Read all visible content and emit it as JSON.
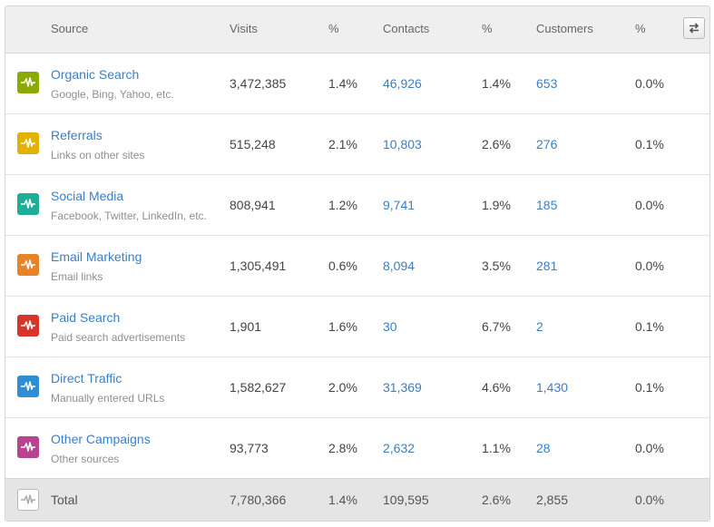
{
  "header": {
    "source": "Source",
    "visits": "Visits",
    "visits_pct": "%",
    "contacts": "Contacts",
    "contacts_pct": "%",
    "customers": "Customers",
    "customers_pct": "%",
    "swap_icon": "swap-arrows-icon"
  },
  "rows": [
    {
      "name": "Organic Search",
      "sub": "Google, Bing, Yahoo, etc.",
      "visits": "3,472,385",
      "visits_pct": "1.4%",
      "contacts": "46,926",
      "contacts_pct": "1.4%",
      "customers": "653",
      "customers_pct": "0.0%",
      "color": "#8aaa00"
    },
    {
      "name": "Referrals",
      "sub": "Links on other sites",
      "visits": "515,248",
      "visits_pct": "2.1%",
      "contacts": "10,803",
      "contacts_pct": "2.6%",
      "customers": "276",
      "customers_pct": "0.1%",
      "color": "#e3b100"
    },
    {
      "name": "Social Media",
      "sub": "Facebook, Twitter, LinkedIn, etc.",
      "visits": "808,941",
      "visits_pct": "1.2%",
      "contacts": "9,741",
      "contacts_pct": "1.9%",
      "customers": "185",
      "customers_pct": "0.0%",
      "color": "#1eae97"
    },
    {
      "name": "Email Marketing",
      "sub": "Email links",
      "visits": "1,305,491",
      "visits_pct": "0.6%",
      "contacts": "8,094",
      "contacts_pct": "3.5%",
      "customers": "281",
      "customers_pct": "0.0%",
      "color": "#e8832a"
    },
    {
      "name": "Paid Search",
      "sub": "Paid search advertisements",
      "visits": "1,901",
      "visits_pct": "1.6%",
      "contacts": "30",
      "contacts_pct": "6.7%",
      "customers": "2",
      "customers_pct": "0.1%",
      "color": "#d8352a"
    },
    {
      "name": "Direct Traffic",
      "sub": "Manually entered URLs",
      "visits": "1,582,627",
      "visits_pct": "2.0%",
      "contacts": "31,369",
      "contacts_pct": "4.6%",
      "customers": "1,430",
      "customers_pct": "0.1%",
      "color": "#2e8dd4"
    },
    {
      "name": "Other Campaigns",
      "sub": "Other sources",
      "visits": "93,773",
      "visits_pct": "2.8%",
      "contacts": "2,632",
      "contacts_pct": "1.1%",
      "customers": "28",
      "customers_pct": "0.0%",
      "color": "#b8438f"
    }
  ],
  "total": {
    "label": "Total",
    "visits": "7,780,366",
    "visits_pct": "1.4%",
    "contacts": "109,595",
    "contacts_pct": "2.6%",
    "customers": "2,855",
    "customers_pct": "0.0%"
  },
  "icons": {
    "row_icon": "pulse-icon",
    "total_icon": "pulse-icon"
  }
}
